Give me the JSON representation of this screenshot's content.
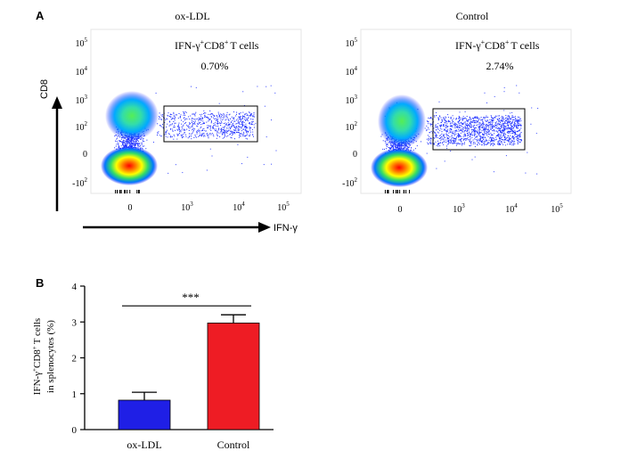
{
  "panel_a": {
    "label": "A",
    "axis_y_label": "CD8",
    "axis_x_label": "IFN-γ",
    "y_ticks": [
      {
        "base": "10",
        "exp": "5"
      },
      {
        "base": "10",
        "exp": "4"
      },
      {
        "base": "10",
        "exp": "3"
      },
      {
        "base": "10",
        "exp": "2"
      },
      {
        "base": "0",
        "exp": ""
      },
      {
        "base": "-10",
        "exp": "2"
      }
    ],
    "x_ticks": [
      {
        "base": "0",
        "exp": ""
      },
      {
        "base": "10",
        "exp": "3"
      },
      {
        "base": "10",
        "exp": "4"
      },
      {
        "base": "10",
        "exp": "5"
      }
    ],
    "plots": [
      {
        "title": "ox-LDL",
        "gate_label_main": "IFN-γ",
        "gate_sup1": "+",
        "gate_mid": "CD8",
        "gate_sup2": "+",
        "gate_tail": "T cells",
        "percent": "0.70%"
      },
      {
        "title": "Control",
        "gate_label_main": "IFN-γ",
        "gate_sup1": "+",
        "gate_mid": "CD8",
        "gate_sup2": "+",
        "gate_tail": "T cells",
        "percent": "2.74%"
      }
    ]
  },
  "chart_data": {
    "type": "bar",
    "panel_label": "B",
    "categories": [
      "ox-LDL",
      "Control"
    ],
    "values": [
      0.82,
      2.97
    ],
    "errors": [
      0.22,
      0.23
    ],
    "colors": [
      "#1f1fe6",
      "#ee1c24"
    ],
    "ylabel_line1_parts": [
      "IFN-γ",
      "+",
      "CD8",
      "+",
      "T cells"
    ],
    "ylabel_line2": "in splenocytes (%)",
    "ylim": [
      0,
      4
    ],
    "yticks": [
      "0",
      "1",
      "2",
      "3",
      "4"
    ],
    "significance": "***"
  }
}
